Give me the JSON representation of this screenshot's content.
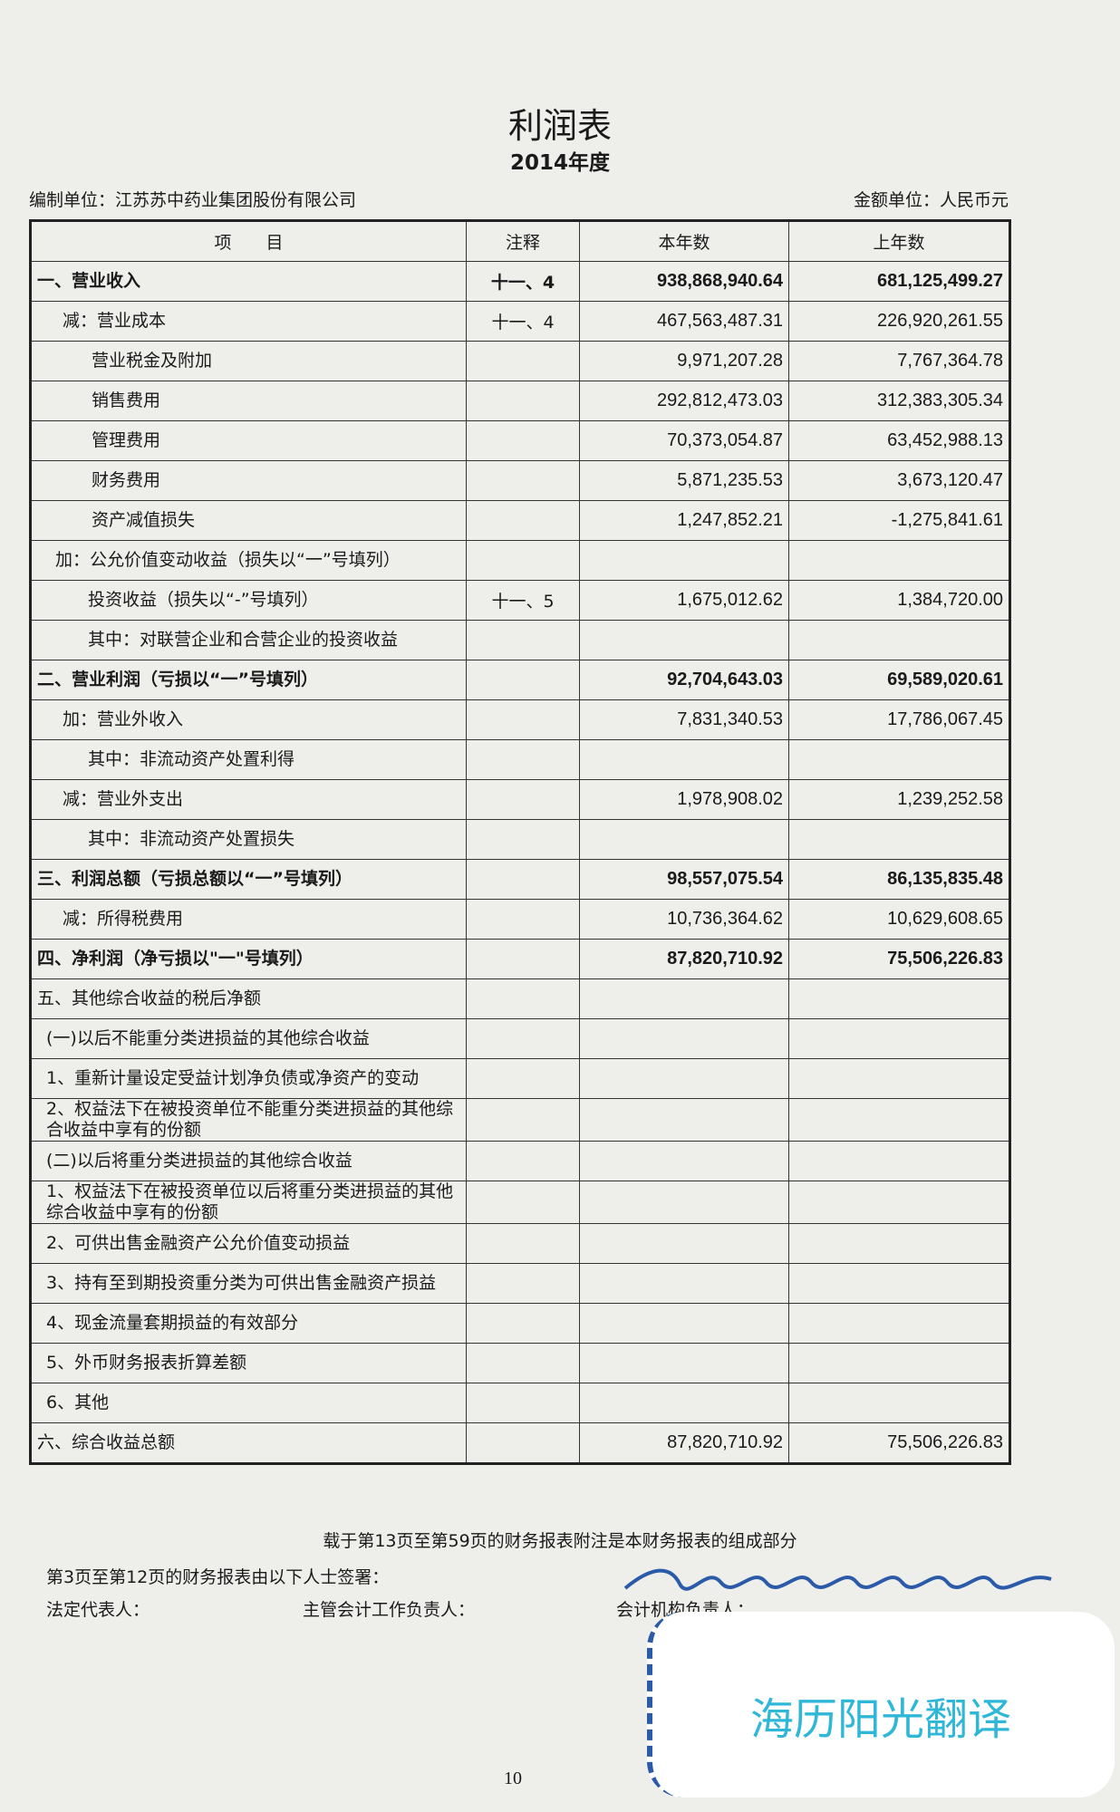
{
  "header": {
    "title": "利润表",
    "period": "2014年度",
    "company": "编制单位：江苏苏中药业集团股份有限公司",
    "unit": "金额单位：人民币元"
  },
  "table": {
    "columns": [
      "项　　目",
      "注释",
      "本年数",
      "上年数"
    ],
    "rows": [
      {
        "label": "一、营业收入",
        "note": "十一、4",
        "current": "938,868,940.64",
        "prior": "681,125,499.27",
        "bold": true
      },
      {
        "label": "减：营业成本",
        "note": "十一、4",
        "current": "467,563,487.31",
        "prior": "226,920,261.55"
      },
      {
        "label": "营业税金及附加",
        "current": "9,971,207.28",
        "prior": "7,767,364.78"
      },
      {
        "label": "销售费用",
        "current": "292,812,473.03",
        "prior": "312,383,305.34"
      },
      {
        "label": "管理费用",
        "current": "70,373,054.87",
        "prior": "63,452,988.13"
      },
      {
        "label": "财务费用",
        "current": "5,871,235.53",
        "prior": "3,673,120.47"
      },
      {
        "label": "资产减值损失",
        "current": "1,247,852.21",
        "prior": "-1,275,841.61"
      },
      {
        "label": "加：公允价值变动收益（损失以“一”号填列）"
      },
      {
        "label": "投资收益（损失以“-”号填列）",
        "note": "十一、5",
        "current": "1,675,012.62",
        "prior": "1,384,720.00"
      },
      {
        "label": "其中：对联营企业和合营企业的投资收益"
      },
      {
        "label": "二、营业利润（亏损以“一”号填列）",
        "current": "92,704,643.03",
        "prior": "69,589,020.61",
        "bold": true
      },
      {
        "label": "加：营业外收入",
        "current": "7,831,340.53",
        "prior": "17,786,067.45"
      },
      {
        "label": "其中：非流动资产处置利得"
      },
      {
        "label": "减：营业外支出",
        "current": "1,978,908.02",
        "prior": "1,239,252.58"
      },
      {
        "label": "其中：非流动资产处置损失"
      },
      {
        "label": "三、利润总额（亏损总额以“一”号填列）",
        "current": "98,557,075.54",
        "prior": "86,135,835.48",
        "bold": true
      },
      {
        "label": "减：所得税费用",
        "current": "10,736,364.62",
        "prior": "10,629,608.65"
      },
      {
        "label": "四、净利润（净亏损以\"一\"号填列）",
        "current": "87,820,710.92",
        "prior": "75,506,226.83",
        "bold": true
      },
      {
        "label": "五、其他综合收益的税后净额"
      },
      {
        "label": "(一)以后不能重分类进损益的其他综合收益"
      },
      {
        "label": "1、重新计量设定受益计划净负债或净资产的变动"
      },
      {
        "label": "2、权益法下在被投资单位不能重分类进损益的其他综合收益中享有的份额"
      },
      {
        "label": "(二)以后将重分类进损益的其他综合收益"
      },
      {
        "label": "1、权益法下在被投资单位以后将重分类进损益的其他综合收益中享有的份额"
      },
      {
        "label": "2、可供出售金融资产公允价值变动损益"
      },
      {
        "label": "3、持有至到期投资重分类为可供出售金融资产损益"
      },
      {
        "label": "4、现金流量套期损益的有效部分"
      },
      {
        "label": "5、外币财务报表折算差额"
      },
      {
        "label": "6、其他"
      },
      {
        "label": "六、综合收益总额",
        "current": "87,820,710.92",
        "prior": "75,506,226.83"
      }
    ]
  },
  "footer": {
    "note": "载于第13页至第59页的财务报表附注是本财务报表的组成部分",
    "signed": "第3页至第12页的财务报表由以下人士签署：",
    "legal_rep": "法定代表人：",
    "accounting_head": "主管会计工作负责人：",
    "accounting_org_head": "会计机构负责人：",
    "page_number": "10"
  },
  "watermark": "海历阳光翻译"
}
